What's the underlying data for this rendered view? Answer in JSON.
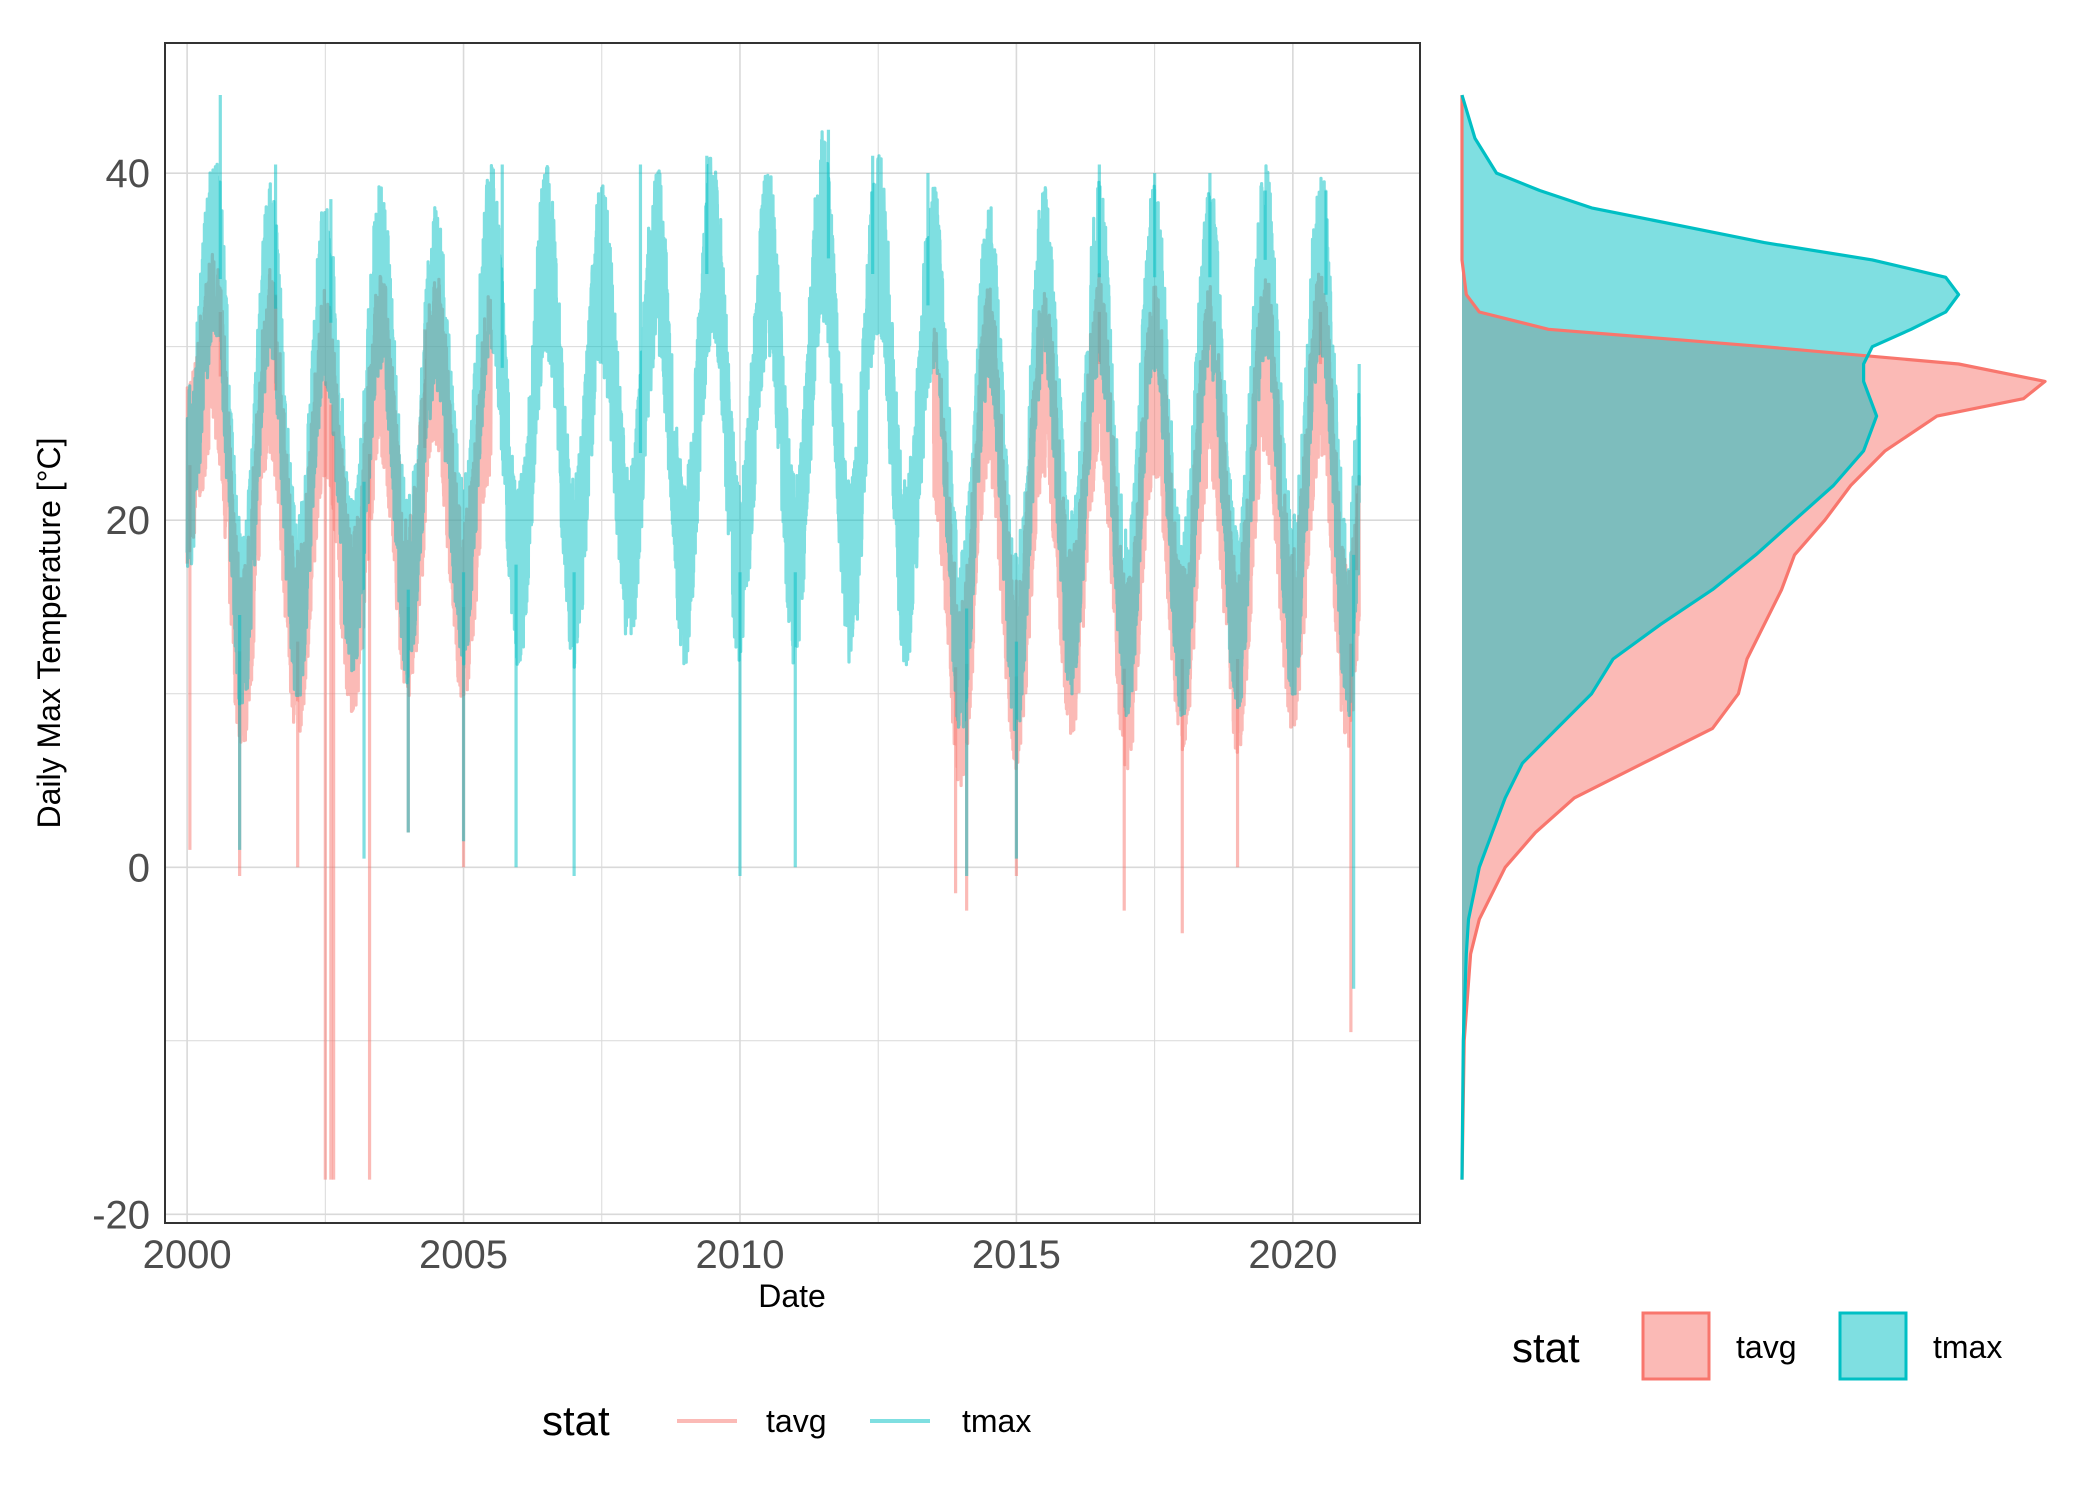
{
  "colors": {
    "tavg": "#F8766D",
    "tmax": "#00BFC4",
    "grid": "#d9d9d9",
    "axis_text": "#4d4d4d",
    "panel_border": "#333333"
  },
  "chart_data": [
    {
      "type": "line",
      "xlabel": "Date",
      "ylabel": "Daily Max Temperature [°C]",
      "xlim": [
        1999.6,
        2022.3
      ],
      "ylim": [
        -20.5,
        47.5
      ],
      "x_ticks": [
        "2000",
        "2005",
        "2010",
        "2015",
        "2020"
      ],
      "y_ticks": [
        "-20",
        "0",
        "20",
        "40"
      ],
      "grid": true,
      "legend": {
        "title": "stat",
        "position": "bottom",
        "entries": [
          "tavg",
          "tmax"
        ]
      },
      "series": [
        {
          "name": "tavg",
          "color": "#F8766D",
          "seasonal_mean": [
            [
              2000.0,
              23.0
            ],
            [
              2000.5,
              30.0
            ],
            [
              2001.0,
              12.0
            ],
            [
              2001.5,
              29.0
            ],
            [
              2002.0,
              13.0
            ],
            [
              2002.5,
              28.0
            ],
            [
              2003.0,
              14.0
            ],
            [
              2003.5,
              29.0
            ],
            [
              2004.0,
              15.0
            ],
            [
              2004.5,
              29.0
            ],
            [
              2005.0,
              15.0
            ],
            [
              2005.5,
              28.0
            ],
            [
              2013.5,
              26.0
            ],
            [
              2014.0,
              10.0
            ],
            [
              2014.5,
              28.0
            ],
            [
              2015.0,
              11.0
            ],
            [
              2015.5,
              28.0
            ],
            [
              2016.0,
              13.0
            ],
            [
              2016.5,
              29.0
            ],
            [
              2017.0,
              11.0
            ],
            [
              2017.5,
              28.0
            ],
            [
              2018.0,
              12.0
            ],
            [
              2018.5,
              28.0
            ],
            [
              2019.0,
              12.0
            ],
            [
              2019.5,
              29.0
            ],
            [
              2020.0,
              13.0
            ],
            [
              2020.5,
              29.0
            ],
            [
              2021.0,
              12.0
            ],
            [
              2021.2,
              18.0
            ]
          ],
          "extremes": [
            [
              2000.05,
              1.0
            ],
            [
              2000.6,
              32.0
            ],
            [
              2000.95,
              -0.5
            ],
            [
              2001.6,
              33.0
            ],
            [
              2002.0,
              0.0
            ],
            [
              2002.5,
              -18.0
            ],
            [
              2002.6,
              -18.0
            ],
            [
              2002.65,
              -18.0
            ],
            [
              2003.3,
              -18.0
            ],
            [
              2004.3,
              31.0
            ],
            [
              2004.0,
              2.0
            ],
            [
              2005.0,
              0.0
            ],
            [
              2013.9,
              -1.5
            ],
            [
              2014.1,
              -2.5
            ],
            [
              2015.0,
              -0.5
            ],
            [
              2016.5,
              32.0
            ],
            [
              2016.95,
              -2.5
            ],
            [
              2018.0,
              -3.8
            ],
            [
              2019.0,
              0.0
            ],
            [
              2020.5,
              32.0
            ],
            [
              2021.05,
              -9.5
            ],
            [
              2021.15,
              22.0
            ]
          ]
        },
        {
          "name": "tmax",
          "color": "#00BFC4",
          "seasonal_mean": [
            [
              2000.0,
              22.0
            ],
            [
              2000.5,
              36.0
            ],
            [
              2001.0,
              14.0
            ],
            [
              2001.5,
              34.0
            ],
            [
              2002.0,
              15.0
            ],
            [
              2002.5,
              33.0
            ],
            [
              2003.0,
              16.0
            ],
            [
              2003.5,
              34.0
            ],
            [
              2004.0,
              16.0
            ],
            [
              2004.5,
              33.0
            ],
            [
              2005.0,
              17.0
            ],
            [
              2005.5,
              35.0
            ],
            [
              2006.0,
              17.0
            ],
            [
              2006.5,
              35.0
            ],
            [
              2007.0,
              17.0
            ],
            [
              2007.5,
              34.0
            ],
            [
              2008.0,
              18.0
            ],
            [
              2008.5,
              35.0
            ],
            [
              2009.0,
              17.0
            ],
            [
              2009.5,
              36.0
            ],
            [
              2010.0,
              17.0
            ],
            [
              2010.5,
              35.0
            ],
            [
              2011.0,
              17.0
            ],
            [
              2011.5,
              37.0
            ],
            [
              2012.0,
              17.0
            ],
            [
              2012.5,
              36.0
            ],
            [
              2013.0,
              17.0
            ],
            [
              2013.5,
              34.0
            ],
            [
              2014.0,
              13.0
            ],
            [
              2014.5,
              33.0
            ],
            [
              2015.0,
              13.0
            ],
            [
              2015.5,
              34.0
            ],
            [
              2016.0,
              15.0
            ],
            [
              2016.5,
              34.0
            ],
            [
              2017.0,
              14.0
            ],
            [
              2017.5,
              34.0
            ],
            [
              2018.0,
              14.0
            ],
            [
              2018.5,
              34.0
            ],
            [
              2019.0,
              14.0
            ],
            [
              2019.5,
              35.0
            ],
            [
              2020.0,
              15.0
            ],
            [
              2020.5,
              35.0
            ],
            [
              2021.0,
              14.0
            ],
            [
              2021.2,
              22.0
            ]
          ],
          "extremes": [
            [
              2000.6,
              44.5
            ],
            [
              2000.95,
              1.0
            ],
            [
              2001.6,
              40.5
            ],
            [
              2002.6,
              38.5
            ],
            [
              2003.2,
              0.5
            ],
            [
              2004.0,
              2.0
            ],
            [
              2005.0,
              1.5
            ],
            [
              2005.7,
              40.5
            ],
            [
              2005.95,
              0.0
            ],
            [
              2007.0,
              -0.5
            ],
            [
              2008.2,
              40.5
            ],
            [
              2009.4,
              41.0
            ],
            [
              2010.0,
              -0.5
            ],
            [
              2011.0,
              0.0
            ],
            [
              2011.6,
              42.5
            ],
            [
              2012.4,
              41.0
            ],
            [
              2013.4,
              40.0
            ],
            [
              2014.1,
              -0.5
            ],
            [
              2015.0,
              0.5
            ],
            [
              2016.5,
              40.5
            ],
            [
              2017.5,
              40.0
            ],
            [
              2018.5,
              40.0
            ],
            [
              2019.5,
              39.0
            ],
            [
              2020.6,
              39.0
            ],
            [
              2021.1,
              -7.0
            ],
            [
              2021.2,
              29.0
            ]
          ]
        }
      ]
    },
    {
      "type": "area",
      "orientation": "vertical-density",
      "ylim": [
        -20.5,
        47.5
      ],
      "legend": {
        "title": "stat",
        "position": "bottom",
        "entries": [
          "tavg",
          "tmax"
        ]
      },
      "series": [
        {
          "name": "tavg",
          "color": "#F8766D",
          "density": [
            [
              -18,
              0.0
            ],
            [
              -10,
              0.0005
            ],
            [
              -5,
              0.002
            ],
            [
              -3,
              0.004
            ],
            [
              0,
              0.01
            ],
            [
              2,
              0.017
            ],
            [
              4,
              0.026
            ],
            [
              6,
              0.042
            ],
            [
              8,
              0.058
            ],
            [
              10,
              0.064
            ],
            [
              12,
              0.066
            ],
            [
              14,
              0.07
            ],
            [
              16,
              0.074
            ],
            [
              18,
              0.077
            ],
            [
              20,
              0.084
            ],
            [
              22,
              0.09
            ],
            [
              24,
              0.098
            ],
            [
              26,
              0.11
            ],
            [
              27,
              0.13
            ],
            [
              28,
              0.135
            ],
            [
              29,
              0.115
            ],
            [
              30,
              0.07
            ],
            [
              31,
              0.02
            ],
            [
              32,
              0.004
            ],
            [
              33,
              0.001
            ],
            [
              35,
              0.0
            ],
            [
              44.5,
              0.0
            ]
          ]
        },
        {
          "name": "tmax",
          "color": "#00BFC4",
          "density": [
            [
              -18,
              0.0
            ],
            [
              -10,
              0.0003
            ],
            [
              -5,
              0.001
            ],
            [
              -3,
              0.0015
            ],
            [
              0,
              0.004
            ],
            [
              2,
              0.007
            ],
            [
              4,
              0.01
            ],
            [
              6,
              0.014
            ],
            [
              8,
              0.022
            ],
            [
              10,
              0.03
            ],
            [
              12,
              0.035
            ],
            [
              14,
              0.046
            ],
            [
              16,
              0.058
            ],
            [
              18,
              0.068
            ],
            [
              20,
              0.077
            ],
            [
              22,
              0.086
            ],
            [
              24,
              0.093
            ],
            [
              26,
              0.096
            ],
            [
              28,
              0.093
            ],
            [
              29,
              0.093
            ],
            [
              30,
              0.095
            ],
            [
              31,
              0.104
            ],
            [
              32,
              0.112
            ],
            [
              33,
              0.115
            ],
            [
              34,
              0.112
            ],
            [
              35,
              0.095
            ],
            [
              36,
              0.07
            ],
            [
              37,
              0.05
            ],
            [
              38,
              0.03
            ],
            [
              39,
              0.018
            ],
            [
              40,
              0.008
            ],
            [
              42,
              0.003
            ],
            [
              44.5,
              0.0
            ]
          ]
        }
      ]
    }
  ]
}
